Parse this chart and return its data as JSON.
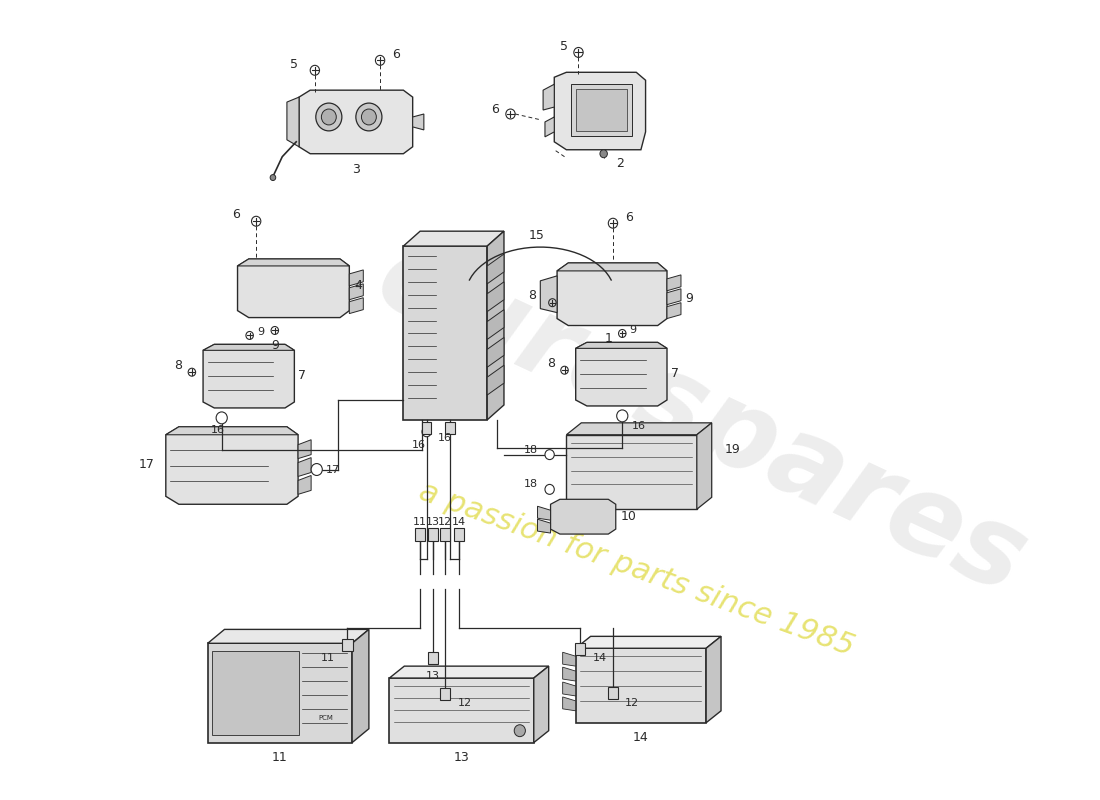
{
  "bg": "#ffffff",
  "lc": "#2a2a2a",
  "watermark1": "eurospares",
  "watermark2": "a passion for parts since 1985",
  "figsize": [
    11.0,
    8.0
  ],
  "dpi": 100
}
